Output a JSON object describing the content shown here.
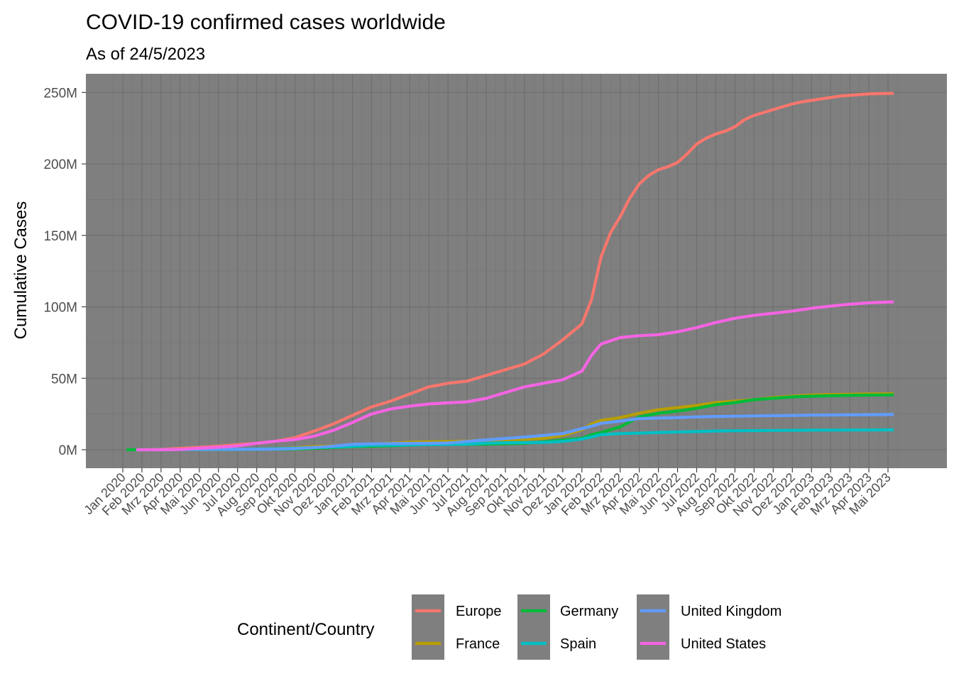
{
  "chart_data": {
    "type": "line",
    "title": "COVID-19 confirmed cases worldwide",
    "subtitle": "As of 24/5/2023",
    "xlabel": "",
    "ylabel": "Cumulative Cases",
    "ylim": [
      0,
      262000000
    ],
    "y_ticks": [
      {
        "value": 0,
        "label": "0M"
      },
      {
        "value": 50000000,
        "label": "50M"
      },
      {
        "value": 100000000,
        "label": "100M"
      },
      {
        "value": 150000000,
        "label": "150M"
      },
      {
        "value": 200000000,
        "label": "200M"
      },
      {
        "value": 250000000,
        "label": "250M"
      }
    ],
    "x_ticks": [
      "Jan 2020",
      "Feb 2020",
      "Mrz 2020",
      "Apr 2020",
      "Mai 2020",
      "Jun 2020",
      "Jul 2020",
      "Aug 2020",
      "Sep 2020",
      "Okt 2020",
      "Nov 2020",
      "Dez 2020",
      "Jan 2021",
      "Feb 2021",
      "Mrz 2021",
      "Apr 2021",
      "Mai 2021",
      "Jun 2021",
      "Jul 2021",
      "Aug 2021",
      "Sep 2021",
      "Okt 2021",
      "Nov 2021",
      "Dez 2021",
      "Jan 2022",
      "Feb 2022",
      "Mrz 2022",
      "Apr 2022",
      "Mai 2022",
      "Jun 2022",
      "Jul 2022",
      "Aug 2022",
      "Sep 2022",
      "Okt 2022",
      "Nov 2022",
      "Dez 2022",
      "Jan 2023",
      "Feb 2023",
      "Mrz 2023",
      "Apr 2023",
      "Mai 2023"
    ],
    "x_note": "x values are month indices: 0 = Jan 2020, 40 = Mai 2023",
    "grid": true,
    "panel_background": "#7f7f7f",
    "legend_title": "Continent/Country",
    "legend_position": "bottom",
    "series": [
      {
        "name": "Europe",
        "color": "#F8766D",
        "points": [
          [
            0.7,
            0
          ],
          [
            1,
            0
          ],
          [
            2,
            0.3
          ],
          [
            3,
            1
          ],
          [
            4,
            1.7
          ],
          [
            5,
            2.5
          ],
          [
            6,
            3.5
          ],
          [
            7,
            4.5
          ],
          [
            8,
            6
          ],
          [
            9,
            8.5
          ],
          [
            10,
            13
          ],
          [
            11,
            18
          ],
          [
            12,
            24
          ],
          [
            13,
            30
          ],
          [
            14,
            34
          ],
          [
            15,
            39
          ],
          [
            16,
            44
          ],
          [
            17,
            46.5
          ],
          [
            18,
            48
          ],
          [
            19,
            52
          ],
          [
            20,
            56
          ],
          [
            21,
            60
          ],
          [
            22,
            67
          ],
          [
            23,
            77
          ],
          [
            24,
            88
          ],
          [
            24.5,
            105
          ],
          [
            25,
            135
          ],
          [
            25.5,
            152
          ],
          [
            26,
            163
          ],
          [
            26.5,
            176
          ],
          [
            27,
            186
          ],
          [
            27.5,
            192
          ],
          [
            28,
            196
          ],
          [
            28.5,
            198
          ],
          [
            29,
            201
          ],
          [
            29.5,
            207
          ],
          [
            30,
            214
          ],
          [
            30.5,
            218
          ],
          [
            31,
            221
          ],
          [
            31.5,
            223
          ],
          [
            32,
            226
          ],
          [
            32.5,
            231
          ],
          [
            33,
            234
          ],
          [
            33.5,
            236
          ],
          [
            34,
            238
          ],
          [
            34.5,
            240
          ],
          [
            35,
            242
          ],
          [
            35.5,
            243.5
          ],
          [
            36,
            244.5
          ],
          [
            36.5,
            245.5
          ],
          [
            37,
            246.5
          ],
          [
            37.5,
            247.5
          ],
          [
            38,
            248
          ],
          [
            38.5,
            248.5
          ],
          [
            39,
            249
          ],
          [
            39.5,
            249.2
          ],
          [
            40,
            249.3
          ],
          [
            40.3,
            249.4
          ]
        ]
      },
      {
        "name": "France",
        "color": "#B79F00",
        "points": [
          [
            0.7,
            0
          ],
          [
            2,
            0
          ],
          [
            3,
            0.15
          ],
          [
            4,
            0.2
          ],
          [
            6,
            0.3
          ],
          [
            7,
            0.45
          ],
          [
            8,
            0.7
          ],
          [
            9,
            1.4
          ],
          [
            10,
            2.3
          ],
          [
            11,
            2.7
          ],
          [
            12,
            3.2
          ],
          [
            13,
            3.9
          ],
          [
            14,
            4.6
          ],
          [
            15,
            5.2
          ],
          [
            16,
            5.6
          ],
          [
            17,
            5.8
          ],
          [
            18,
            6
          ],
          [
            19,
            6.6
          ],
          [
            20,
            7
          ],
          [
            21,
            7.2
          ],
          [
            22,
            8
          ],
          [
            23,
            10
          ],
          [
            24,
            14
          ],
          [
            24.5,
            18
          ],
          [
            25,
            20.5
          ],
          [
            26,
            22.5
          ],
          [
            27,
            25.5
          ],
          [
            28,
            28
          ],
          [
            29,
            29.5
          ],
          [
            30,
            31
          ],
          [
            31,
            33
          ],
          [
            32,
            34
          ],
          [
            33,
            35
          ],
          [
            34,
            36.5
          ],
          [
            35,
            37.5
          ],
          [
            36,
            38.3
          ],
          [
            37,
            38.6
          ],
          [
            38,
            38.8
          ],
          [
            39,
            39
          ],
          [
            40,
            39.1
          ],
          [
            40.3,
            39.2
          ]
        ]
      },
      {
        "name": "Germany",
        "color": "#00BA38",
        "points": [
          [
            0.2,
            0
          ],
          [
            2,
            0
          ],
          [
            3,
            0.1
          ],
          [
            4,
            0.17
          ],
          [
            6,
            0.2
          ],
          [
            7,
            0.24
          ],
          [
            8,
            0.3
          ],
          [
            9,
            0.45
          ],
          [
            10,
            1
          ],
          [
            11,
            1.6
          ],
          [
            12,
            2.2
          ],
          [
            13,
            2.5
          ],
          [
            14,
            2.8
          ],
          [
            15,
            3.3
          ],
          [
            16,
            3.7
          ],
          [
            17,
            3.75
          ],
          [
            18,
            3.8
          ],
          [
            19,
            3.9
          ],
          [
            20,
            4.2
          ],
          [
            21,
            4.5
          ],
          [
            22,
            5.5
          ],
          [
            23,
            6.8
          ],
          [
            24,
            8
          ],
          [
            24.5,
            10.5
          ],
          [
            25,
            12
          ],
          [
            26,
            16
          ],
          [
            27,
            23
          ],
          [
            28,
            25.5
          ],
          [
            29,
            27
          ],
          [
            30,
            29
          ],
          [
            31,
            31.5
          ],
          [
            32,
            33
          ],
          [
            33,
            35
          ],
          [
            34,
            36
          ],
          [
            35,
            37
          ],
          [
            36,
            37.5
          ],
          [
            37,
            37.8
          ],
          [
            38,
            38
          ],
          [
            39,
            38.2
          ],
          [
            40,
            38.3
          ],
          [
            40.3,
            38.4
          ]
        ]
      },
      {
        "name": "Spain",
        "color": "#00BFC4",
        "points": [
          [
            0.7,
            0
          ],
          [
            2,
            0
          ],
          [
            3,
            0.2
          ],
          [
            4,
            0.23
          ],
          [
            6,
            0.26
          ],
          [
            7,
            0.5
          ],
          [
            8,
            0.7
          ],
          [
            9,
            1.1
          ],
          [
            10,
            1.6
          ],
          [
            11,
            1.9
          ],
          [
            12,
            2.4
          ],
          [
            13,
            3.1
          ],
          [
            14,
            3.25
          ],
          [
            15,
            3.4
          ],
          [
            16,
            3.6
          ],
          [
            17,
            3.7
          ],
          [
            18,
            3.9
          ],
          [
            19,
            4.6
          ],
          [
            20,
            4.9
          ],
          [
            21,
            5
          ],
          [
            22,
            5.1
          ],
          [
            23,
            5.8
          ],
          [
            24,
            7.5
          ],
          [
            24.5,
            9
          ],
          [
            25,
            10.6
          ],
          [
            26,
            11.3
          ],
          [
            27,
            11.6
          ],
          [
            28,
            12.1
          ],
          [
            29,
            12.4
          ],
          [
            30,
            12.7
          ],
          [
            31,
            13.1
          ],
          [
            32,
            13.3
          ],
          [
            33,
            13.4
          ],
          [
            34,
            13.5
          ],
          [
            35,
            13.6
          ],
          [
            36,
            13.7
          ],
          [
            37,
            13.75
          ],
          [
            38,
            13.8
          ],
          [
            39,
            13.85
          ],
          [
            40,
            13.9
          ],
          [
            40.3,
            13.9
          ]
        ]
      },
      {
        "name": "United Kingdom",
        "color": "#619CFF",
        "points": [
          [
            0.7,
            0
          ],
          [
            2,
            0
          ],
          [
            3,
            0.17
          ],
          [
            4,
            0.25
          ],
          [
            6,
            0.3
          ],
          [
            7,
            0.33
          ],
          [
            8,
            0.4
          ],
          [
            9,
            0.8
          ],
          [
            10,
            1.6
          ],
          [
            11,
            2.5
          ],
          [
            12,
            3.8
          ],
          [
            13,
            4.1
          ],
          [
            14,
            4.3
          ],
          [
            15,
            4.4
          ],
          [
            16,
            4.5
          ],
          [
            17,
            4.7
          ],
          [
            18,
            5.8
          ],
          [
            19,
            6.9
          ],
          [
            20,
            7.9
          ],
          [
            21,
            8.9
          ],
          [
            22,
            10
          ],
          [
            23,
            11.3
          ],
          [
            24,
            14.8
          ],
          [
            24.5,
            16.5
          ],
          [
            25,
            18.5
          ],
          [
            26,
            20
          ],
          [
            27,
            21.8
          ],
          [
            28,
            22.2
          ],
          [
            29,
            22.5
          ],
          [
            30,
            23
          ],
          [
            31,
            23.3
          ],
          [
            32,
            23.5
          ],
          [
            33,
            23.7
          ],
          [
            34,
            23.9
          ],
          [
            35,
            24
          ],
          [
            36,
            24.2
          ],
          [
            37,
            24.3
          ],
          [
            38,
            24.4
          ],
          [
            39,
            24.5
          ],
          [
            40,
            24.6
          ],
          [
            40.3,
            24.6
          ]
        ]
      },
      {
        "name": "United States",
        "color": "#F564E3",
        "points": [
          [
            0.7,
            0
          ],
          [
            2,
            0
          ],
          [
            3,
            0.2
          ],
          [
            4,
            1.1
          ],
          [
            5,
            1.8
          ],
          [
            6,
            2.7
          ],
          [
            7,
            4.5
          ],
          [
            8,
            6
          ],
          [
            9,
            7.2
          ],
          [
            10,
            9.5
          ],
          [
            11,
            13.5
          ],
          [
            12,
            19
          ],
          [
            13,
            25
          ],
          [
            14,
            28.5
          ],
          [
            15,
            30.5
          ],
          [
            16,
            32
          ],
          [
            17,
            32.8
          ],
          [
            18,
            33.5
          ],
          [
            19,
            36
          ],
          [
            20,
            40
          ],
          [
            21,
            44
          ],
          [
            22,
            46.5
          ],
          [
            23,
            49
          ],
          [
            24,
            55
          ],
          [
            24.5,
            66
          ],
          [
            25,
            74
          ],
          [
            26,
            78.5
          ],
          [
            27,
            79.8
          ],
          [
            28,
            80.5
          ],
          [
            29,
            82.5
          ],
          [
            30,
            85.5
          ],
          [
            31,
            89
          ],
          [
            32,
            92
          ],
          [
            33,
            94
          ],
          [
            34,
            95.5
          ],
          [
            35,
            97
          ],
          [
            36,
            99
          ],
          [
            37,
            100.5
          ],
          [
            38,
            101.8
          ],
          [
            39,
            102.8
          ],
          [
            40,
            103.3
          ],
          [
            40.3,
            103.5
          ]
        ]
      }
    ]
  }
}
